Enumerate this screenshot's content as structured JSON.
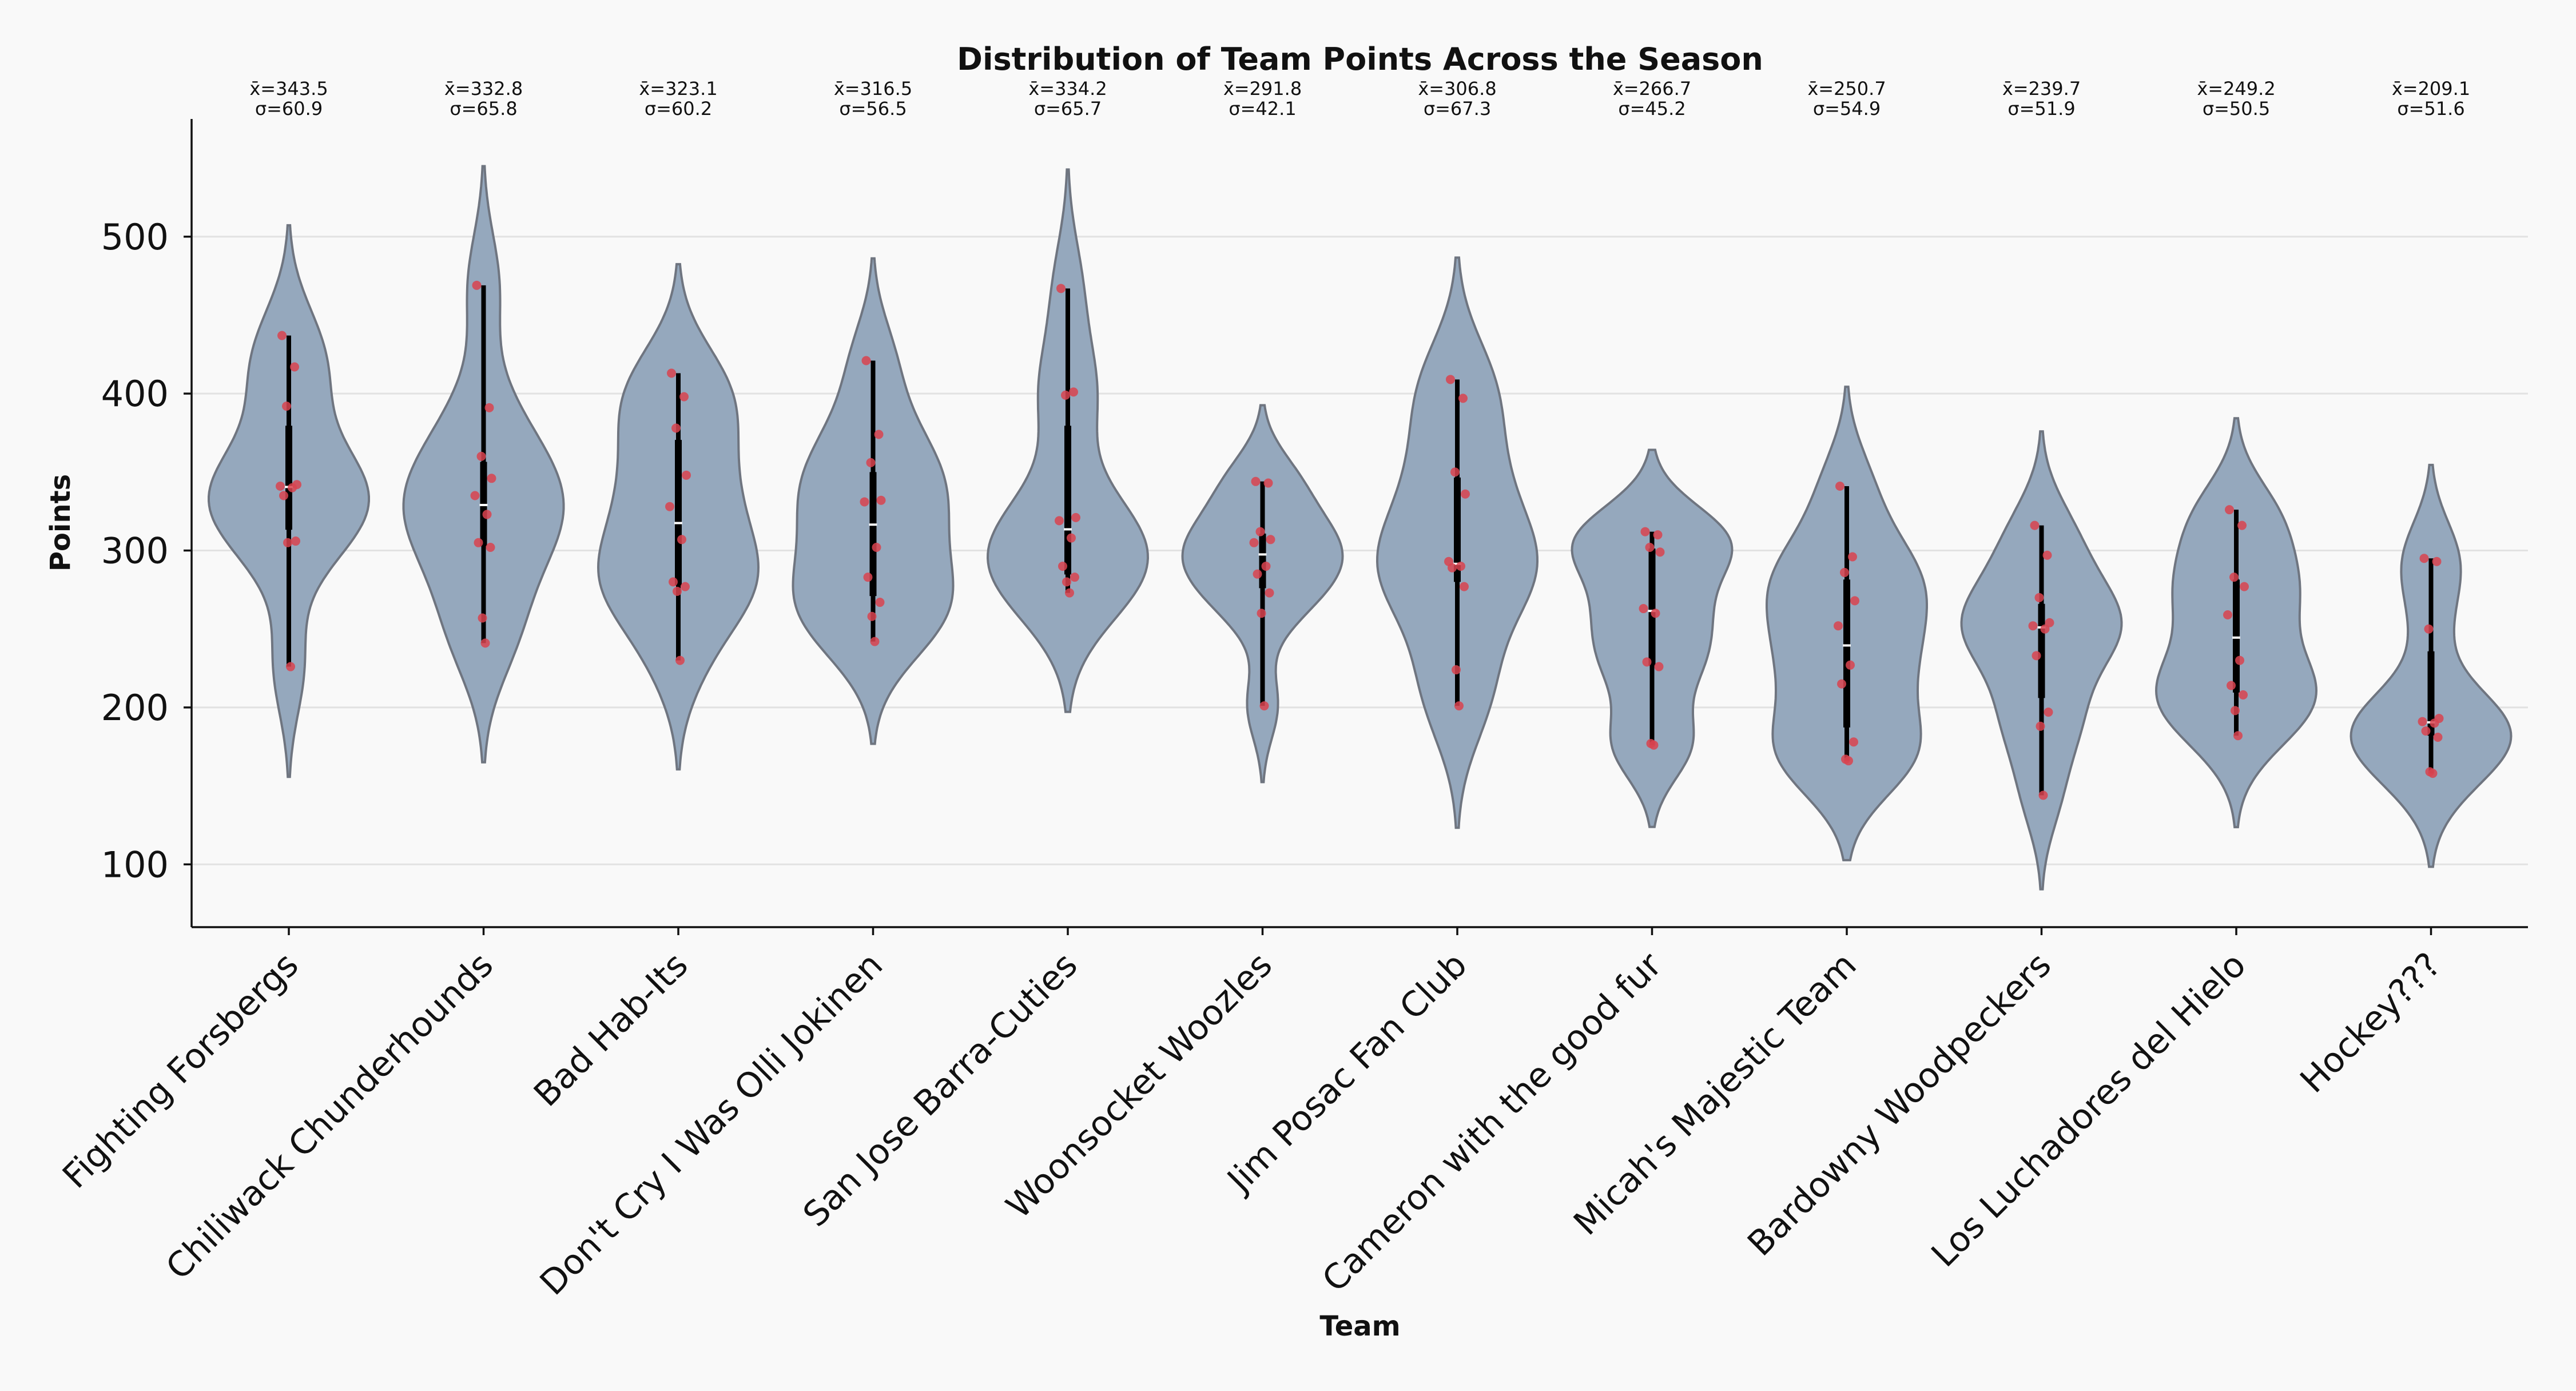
{
  "chart_data": {
    "type": "violin",
    "title": "Distribution of Team Points Across the Season",
    "xlabel": "Team",
    "ylabel": "Points",
    "ylim": [
      60,
      575
    ],
    "yticks": [
      100,
      200,
      300,
      400,
      500
    ],
    "grid": "horizontal",
    "stat_mean_symbol": "x̄",
    "stat_std_symbol": "σ",
    "teams": [
      {
        "name": "Fighting Forsbergs",
        "mean_label": "343.5",
        "std_label": "60.9",
        "mean": 343.5,
        "std": 60.9,
        "points": [
          437,
          417,
          392,
          342,
          341,
          340,
          335,
          306,
          305,
          226
        ]
      },
      {
        "name": "Chiliwack Chunderhounds",
        "mean_label": "332.8",
        "std_label": "65.8",
        "mean": 332.8,
        "std": 65.8,
        "points": [
          469,
          391,
          360,
          346,
          335,
          323,
          305,
          302,
          257,
          241
        ]
      },
      {
        "name": "Bad Hab-Its",
        "mean_label": "323.1",
        "std_label": "60.2",
        "mean": 323.1,
        "std": 60.2,
        "points": [
          413,
          398,
          378,
          348,
          328,
          307,
          280,
          277,
          274,
          230
        ]
      },
      {
        "name": "Don't Cry I Was Olli Jokinen",
        "mean_label": "316.5",
        "std_label": "56.5",
        "mean": 316.5,
        "std": 56.5,
        "points": [
          421,
          374,
          356,
          332,
          331,
          302,
          283,
          267,
          258,
          242
        ]
      },
      {
        "name": "San Jose Barra-Cuties",
        "mean_label": "334.2",
        "std_label": "65.7",
        "mean": 334.2,
        "std": 65.7,
        "points": [
          467,
          401,
          399,
          321,
          319,
          308,
          290,
          283,
          280,
          273
        ]
      },
      {
        "name": "Woonsocket Woozles",
        "mean_label": "291.8",
        "std_label": "42.1",
        "mean": 291.8,
        "std": 42.1,
        "points": [
          344,
          343,
          312,
          307,
          305,
          290,
          285,
          273,
          260,
          201
        ]
      },
      {
        "name": "Jim Posac Fan Club",
        "mean_label": "306.8",
        "std_label": "67.3",
        "mean": 306.8,
        "std": 67.3,
        "points": [
          409,
          397,
          350,
          336,
          293,
          290,
          289,
          277,
          224,
          201
        ]
      },
      {
        "name": "Cameron with the good fur",
        "mean_label": "266.7",
        "std_label": "45.2",
        "mean": 266.7,
        "std": 45.2,
        "points": [
          312,
          310,
          302,
          299,
          263,
          260,
          229,
          226,
          177,
          176
        ]
      },
      {
        "name": "Micah's Majestic Team",
        "mean_label": "250.7",
        "std_label": "54.9",
        "mean": 250.7,
        "std": 54.9,
        "points": [
          341,
          296,
          286,
          268,
          252,
          227,
          215,
          178,
          167,
          166
        ]
      },
      {
        "name": "Bardowny Woodpeckers",
        "mean_label": "239.7",
        "std_label": "51.9",
        "mean": 239.7,
        "std": 51.9,
        "points": [
          316,
          297,
          270,
          254,
          252,
          250,
          233,
          197,
          188,
          144
        ]
      },
      {
        "name": "Los Luchadores del Hielo",
        "mean_label": "249.2",
        "std_label": "50.5",
        "mean": 249.2,
        "std": 50.5,
        "points": [
          326,
          316,
          283,
          277,
          259,
          230,
          214,
          208,
          198,
          182
        ]
      },
      {
        "name": "Hockey???",
        "mean_label": "209.1",
        "std_label": "51.6",
        "mean": 209.1,
        "std": 51.6,
        "points": [
          295,
          293,
          250,
          193,
          191,
          190,
          185,
          181,
          159,
          158
        ]
      }
    ],
    "colors": {
      "violin_fill": "#95a8bd",
      "violin_stroke": "#6f7580",
      "point": "#d9434f",
      "box": "#000000",
      "median": "#ffffff"
    }
  }
}
